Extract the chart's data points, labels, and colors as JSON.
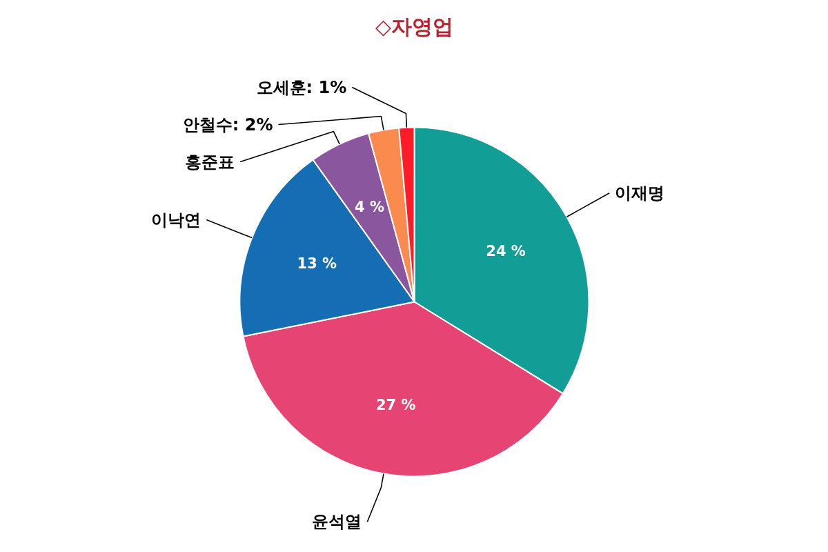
{
  "chart_data": {
    "type": "pie",
    "title": "◇자영업",
    "categories": [
      "이재명",
      "윤석열",
      "이낙연",
      "홍준표",
      "안철수",
      "오세훈"
    ],
    "values": [
      24,
      27,
      13,
      4,
      2,
      1
    ],
    "colors": [
      "#129e96",
      "#e64574",
      "#156db3",
      "#8a569e",
      "#fb8a4e",
      "#fe1c28"
    ],
    "value_labels": [
      "24 %",
      "27 %",
      "13 %",
      "4 %",
      "2%",
      "1%"
    ]
  }
}
